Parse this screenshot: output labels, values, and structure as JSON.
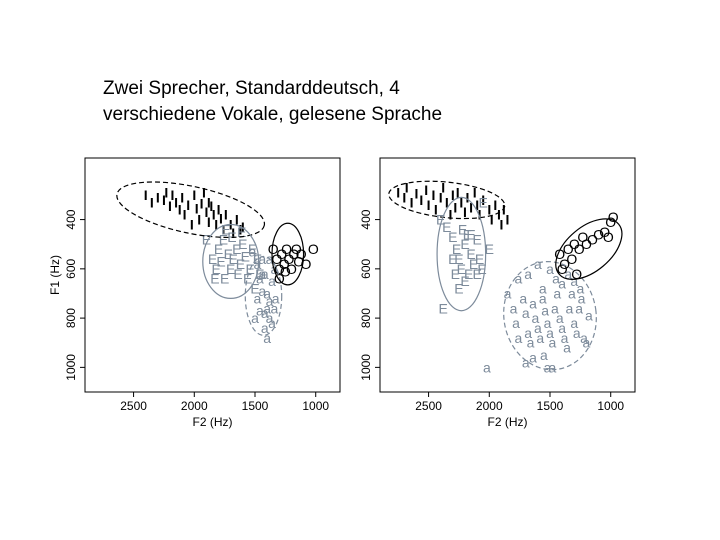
{
  "slide": {
    "title_line1": "Zwei Sprecher, Standarddeutsch, 4",
    "title_line2": "verschiedene Vokale, gelesene Sprache"
  },
  "colors": {
    "I": "#000000",
    "E": "#7d8b9b",
    "a": "#7d8b9b",
    "O": "#000000"
  },
  "chart_data": [
    {
      "type": "scatter",
      "xlabel": "F2 (Hz)",
      "ylabel": "F1 (Hz)",
      "xlim": [
        2900,
        800
      ],
      "ylim": [
        1100,
        150
      ],
      "x_ticks": [
        2500,
        2000,
        1500,
        1000
      ],
      "y_ticks": [
        400,
        600,
        800,
        1000
      ],
      "series": [
        {
          "name": "I",
          "symbol": "I",
          "ellipse": {
            "cx": 2030,
            "cy": 360,
            "rx": 620,
            "ry": 95,
            "angle": 12,
            "dash": true
          },
          "points": [
            [
              2400,
              300
            ],
            [
              2350,
              330
            ],
            [
              2300,
              310
            ],
            [
              2250,
              320
            ],
            [
              2230,
              290
            ],
            [
              2200,
              345
            ],
            [
              2180,
              300
            ],
            [
              2150,
              330
            ],
            [
              2120,
              360
            ],
            [
              2100,
              310
            ],
            [
              2080,
              380
            ],
            [
              2050,
              340
            ],
            [
              2000,
              300
            ],
            [
              1980,
              355
            ],
            [
              1960,
              400
            ],
            [
              1940,
              335
            ],
            [
              1920,
              290
            ],
            [
              1900,
              370
            ],
            [
              1880,
              410
            ],
            [
              1860,
              345
            ],
            [
              1840,
              380
            ],
            [
              1820,
              420
            ],
            [
              1800,
              360
            ],
            [
              1780,
              395
            ],
            [
              1760,
              440
            ],
            [
              1740,
              380
            ],
            [
              1700,
              420
            ],
            [
              1680,
              455
            ],
            [
              1650,
              400
            ],
            [
              1620,
              440
            ],
            [
              1600,
              430
            ],
            [
              2020,
              420
            ],
            [
              1880,
              330
            ]
          ]
        },
        {
          "name": "E",
          "symbol": "E",
          "ellipse": {
            "cx": 1700,
            "cy": 570,
            "rx": 230,
            "ry": 150,
            "angle": 0,
            "dash": false
          },
          "points": [
            [
              1900,
              480
            ],
            [
              1850,
              560
            ],
            [
              1820,
              600
            ],
            [
              1800,
              520
            ],
            [
              1780,
              570
            ],
            [
              1760,
              480
            ],
            [
              1750,
              640
            ],
            [
              1720,
              540
            ],
            [
              1700,
              600
            ],
            [
              1690,
              470
            ],
            [
              1680,
              560
            ],
            [
              1650,
              520
            ],
            [
              1640,
              620
            ],
            [
              1620,
              580
            ],
            [
              1600,
              500
            ],
            [
              1580,
              550
            ],
            [
              1560,
              640
            ],
            [
              1540,
              600
            ],
            [
              1520,
              520
            ],
            [
              1500,
              680
            ],
            [
              1480,
              560
            ],
            [
              1460,
              620
            ],
            [
              1740,
              440
            ],
            [
              1830,
              640
            ],
            [
              1610,
              450
            ]
          ]
        },
        {
          "name": "a",
          "symbol": "a",
          "ellipse": {
            "cx": 1430,
            "cy": 710,
            "rx": 150,
            "ry": 160,
            "angle": 0,
            "dash": true
          },
          "points": [
            [
              1520,
              530
            ],
            [
              1480,
              580
            ],
            [
              1460,
              640
            ],
            [
              1440,
              560
            ],
            [
              1420,
              620
            ],
            [
              1400,
              700
            ],
            [
              1380,
              560
            ],
            [
              1360,
              650
            ],
            [
              1340,
              600
            ],
            [
              1330,
              720
            ],
            [
              1480,
              720
            ],
            [
              1460,
              770
            ],
            [
              1440,
              690
            ],
            [
              1420,
              780
            ],
            [
              1400,
              760
            ],
            [
              1380,
              800
            ],
            [
              1360,
              820
            ],
            [
              1340,
              760
            ],
            [
              1500,
              800
            ],
            [
              1420,
              840
            ],
            [
              1400,
              880
            ],
            [
              1380,
              730
            ],
            [
              1440,
              620
            ]
          ]
        },
        {
          "name": "O",
          "symbol": "O",
          "ellipse": {
            "cx": 1230,
            "cy": 540,
            "rx": 130,
            "ry": 125,
            "angle": 0,
            "dash": false
          },
          "points": [
            [
              1350,
              520
            ],
            [
              1320,
              560
            ],
            [
              1300,
              600
            ],
            [
              1280,
              540
            ],
            [
              1260,
              580
            ],
            [
              1240,
              520
            ],
            [
              1220,
              560
            ],
            [
              1200,
              600
            ],
            [
              1180,
              540
            ],
            [
              1160,
              520
            ],
            [
              1140,
              570
            ],
            [
              1120,
              540
            ],
            [
              1080,
              580
            ],
            [
              1020,
              520
            ],
            [
              1300,
              640
            ],
            [
              1250,
              610
            ]
          ]
        }
      ]
    },
    {
      "type": "scatter",
      "xlabel": "F2 (Hz)",
      "ylabel": "F1 (Hz)",
      "xlim": [
        2900,
        800
      ],
      "ylim": [
        1100,
        150
      ],
      "x_ticks": [
        2500,
        2000,
        1500,
        1000
      ],
      "y_ticks": [
        400,
        600,
        800,
        1000
      ],
      "series": [
        {
          "name": "I",
          "symbol": "I",
          "ellipse": {
            "cx": 2350,
            "cy": 320,
            "rx": 480,
            "ry": 72,
            "angle": 6,
            "dash": true
          },
          "points": [
            [
              2750,
              290
            ],
            [
              2700,
              310
            ],
            [
              2680,
              270
            ],
            [
              2640,
              330
            ],
            [
              2600,
              295
            ],
            [
              2560,
              320
            ],
            [
              2520,
              280
            ],
            [
              2500,
              340
            ],
            [
              2460,
              300
            ],
            [
              2440,
              360
            ],
            [
              2400,
              310
            ],
            [
              2380,
              270
            ],
            [
              2350,
              330
            ],
            [
              2320,
              380
            ],
            [
              2300,
              300
            ],
            [
              2280,
              350
            ],
            [
              2260,
              290
            ],
            [
              2230,
              330
            ],
            [
              2200,
              370
            ],
            [
              2180,
              310
            ],
            [
              2150,
              350
            ],
            [
              2120,
              290
            ],
            [
              2100,
              340
            ],
            [
              2080,
              380
            ],
            [
              2050,
              320
            ],
            [
              2000,
              360
            ],
            [
              1980,
              400
            ],
            [
              1950,
              340
            ],
            [
              1920,
              380
            ],
            [
              1900,
              420
            ],
            [
              1880,
              360
            ],
            [
              1850,
              400
            ]
          ]
        },
        {
          "name": "E",
          "symbol": "E",
          "ellipse": {
            "cx": 2230,
            "cy": 540,
            "rx": 200,
            "ry": 230,
            "angle": 0,
            "dash": false
          },
          "points": [
            [
              2350,
              430
            ],
            [
              2300,
              470
            ],
            [
              2270,
              520
            ],
            [
              2250,
              560
            ],
            [
              2230,
              600
            ],
            [
              2200,
              500
            ],
            [
              2180,
              460
            ],
            [
              2150,
              540
            ],
            [
              2130,
              580
            ],
            [
              2100,
              620
            ],
            [
              2300,
              560
            ],
            [
              2280,
              620
            ],
            [
              2400,
              400
            ],
            [
              2200,
              650
            ],
            [
              2150,
              460
            ],
            [
              2100,
              480
            ],
            [
              2080,
              560
            ],
            [
              2060,
              600
            ],
            [
              2050,
              330
            ],
            [
              2000,
              520
            ],
            [
              2220,
              440
            ],
            [
              2170,
              620
            ],
            [
              2250,
              680
            ],
            [
              2380,
              760
            ]
          ]
        },
        {
          "name": "a",
          "symbol": "a",
          "ellipse": {
            "cx": 1500,
            "cy": 790,
            "rx": 380,
            "ry": 220,
            "angle": -8,
            "dash": true
          },
          "points": [
            [
              1850,
              700
            ],
            [
              1800,
              760
            ],
            [
              1780,
              820
            ],
            [
              1760,
              880
            ],
            [
              1720,
              720
            ],
            [
              1700,
              780
            ],
            [
              1680,
              860
            ],
            [
              1660,
              900
            ],
            [
              1640,
              740
            ],
            [
              1620,
              800
            ],
            [
              1600,
              840
            ],
            [
              1580,
              880
            ],
            [
              1560,
              720
            ],
            [
              1540,
              770
            ],
            [
              1520,
              820
            ],
            [
              1500,
              860
            ],
            [
              1480,
              900
            ],
            [
              1460,
              760
            ],
            [
              1440,
              700
            ],
            [
              1420,
              800
            ],
            [
              1400,
              840
            ],
            [
              1380,
              880
            ],
            [
              1360,
              920
            ],
            [
              1340,
              760
            ],
            [
              1320,
              700
            ],
            [
              1300,
              820
            ],
            [
              1280,
              860
            ],
            [
              1260,
              760
            ],
            [
              1240,
              720
            ],
            [
              1220,
              880
            ],
            [
              1200,
              900
            ],
            [
              1180,
              790
            ],
            [
              1640,
              960
            ],
            [
              1520,
              1000
            ],
            [
              1480,
              1000
            ],
            [
              1550,
              950
            ],
            [
              2020,
              1000
            ],
            [
              1700,
              980
            ],
            [
              1500,
              600
            ],
            [
              1450,
              640
            ],
            [
              1600,
              580
            ],
            [
              1350,
              620
            ],
            [
              1400,
              660
            ],
            [
              1300,
              650
            ],
            [
              1250,
              680
            ],
            [
              1680,
              620
            ],
            [
              1760,
              640
            ],
            [
              1560,
              680
            ]
          ]
        },
        {
          "name": "O",
          "symbol": "O",
          "ellipse": {
            "cx": 1180,
            "cy": 520,
            "rx": 320,
            "ry": 90,
            "angle": -40,
            "dash": false
          },
          "points": [
            [
              1420,
              540
            ],
            [
              1380,
              580
            ],
            [
              1350,
              520
            ],
            [
              1320,
              560
            ],
            [
              1300,
              500
            ],
            [
              1260,
              520
            ],
            [
              1230,
              470
            ],
            [
              1200,
              500
            ],
            [
              1150,
              480
            ],
            [
              1100,
              460
            ],
            [
              1050,
              450
            ],
            [
              1000,
              410
            ],
            [
              980,
              390
            ],
            [
              1020,
              470
            ],
            [
              1280,
              620
            ],
            [
              1400,
              600
            ]
          ]
        }
      ]
    }
  ]
}
